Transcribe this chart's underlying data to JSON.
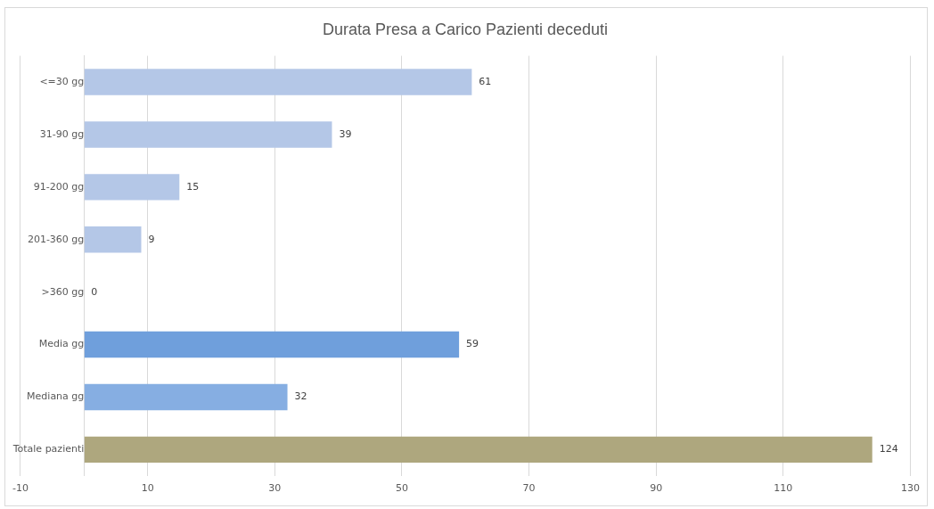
{
  "chart_data": {
    "type": "bar",
    "orientation": "horizontal",
    "title": "Durata Presa a Carico Pazienti deceduti",
    "categories": [
      "<=30 gg",
      "31-90 gg",
      "91-200 gg",
      "201-360 gg",
      ">360 gg",
      "Media gg",
      "Mediana gg",
      "Totale pazienti"
    ],
    "values": [
      61,
      39,
      15,
      9,
      0,
      59,
      32,
      124
    ],
    "colors": [
      "#b4c7e7",
      "#b4c7e7",
      "#b4c7e7",
      "#b4c7e7",
      "#b4c7e7",
      "#6f9fdc",
      "#86aee2",
      "#aea77e"
    ],
    "xlim": [
      -10,
      130
    ],
    "xticks": [
      -10,
      {
        "value": 0,
        "label": null
      },
      10,
      30,
      50,
      70,
      90,
      110,
      130
    ],
    "grid": "x",
    "legend": false,
    "data_labels": true
  }
}
